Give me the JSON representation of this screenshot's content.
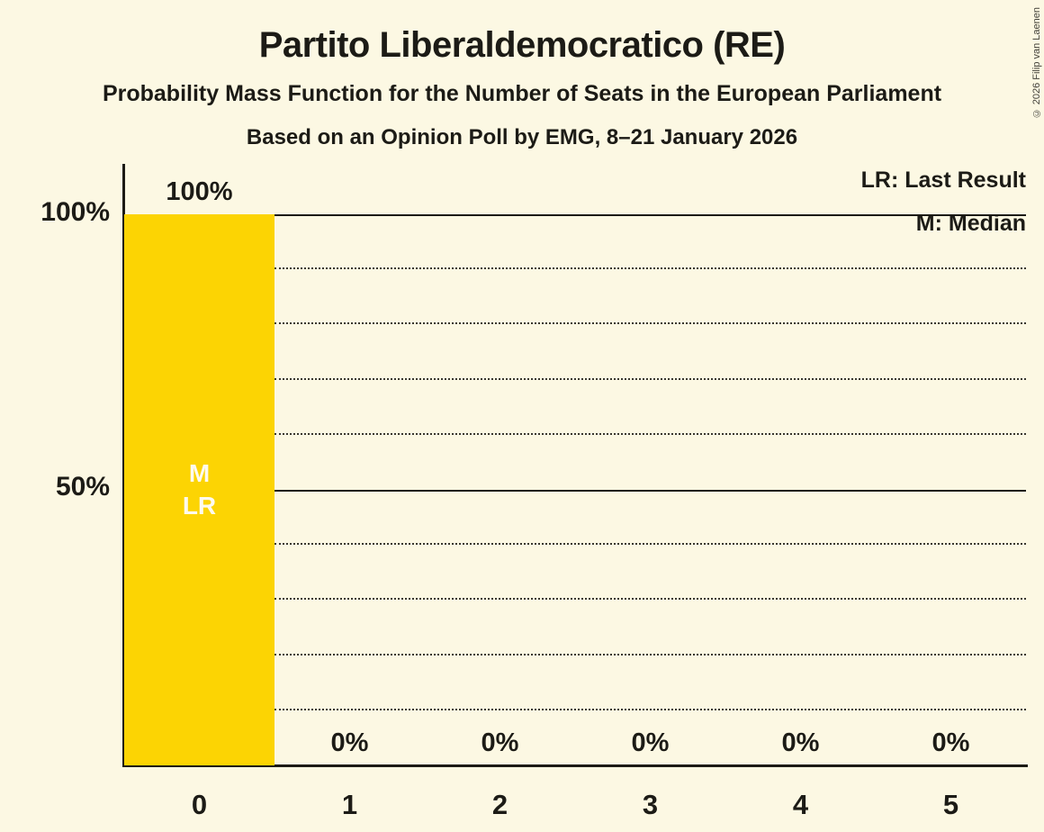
{
  "title": "Partito Liberaldemocratico (RE)",
  "subtitle1": "Probability Mass Function for the Number of Seats in the European Parliament",
  "subtitle2": "Based on an Opinion Poll by EMG, 8–21 January 2026",
  "copyright": "© 2026 Filip van Laenen",
  "legend": {
    "lr": "LR: Last Result",
    "m": "M: Median"
  },
  "bar_annotation": {
    "m": "M",
    "lr": "LR"
  },
  "y_axis": {
    "tick_100": "100%",
    "tick_50": "50%"
  },
  "chart_data": {
    "type": "bar",
    "title": "Partito Liberaldemocratico (RE)",
    "subtitle": "Probability Mass Function for the Number of Seats in the European Parliament",
    "source_note": "Based on an Opinion Poll by EMG, 8–21 January 2026",
    "categories": [
      "0",
      "1",
      "2",
      "3",
      "4",
      "5"
    ],
    "values": [
      100,
      0,
      0,
      0,
      0,
      0
    ],
    "value_labels": [
      "100%",
      "0%",
      "0%",
      "0%",
      "0%",
      "0%"
    ],
    "xlabel": "",
    "ylabel": "",
    "ylim": [
      0,
      100
    ],
    "y_tick_values": [
      100,
      50
    ],
    "gridlines": {
      "solid": [
        100,
        50
      ],
      "dotted": [
        90,
        80,
        70,
        60,
        40,
        30,
        20,
        10
      ]
    },
    "median_category": "0",
    "last_result_category": "0",
    "bar_color": "#fcd403",
    "background_color": "#fcf8e3",
    "text_color": "#1c1b16",
    "legend_position": "top-right",
    "grid": true
  }
}
